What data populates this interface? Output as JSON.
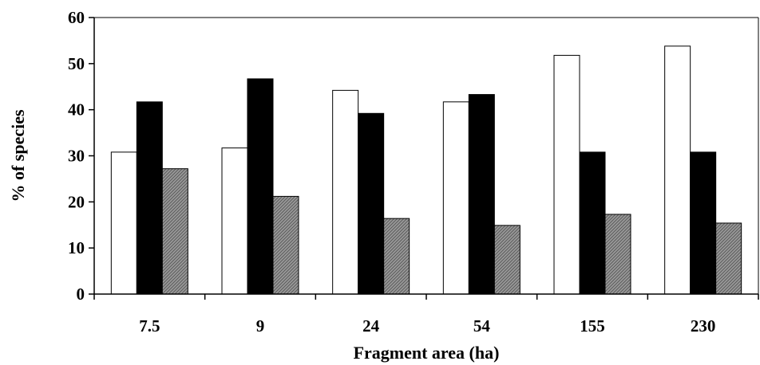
{
  "chart_data": {
    "type": "bar",
    "title": "",
    "xlabel": "Fragment area (ha)",
    "ylabel": "% of species",
    "categories": [
      "7.5",
      "9",
      "24",
      "54",
      "155",
      "230"
    ],
    "ylim": [
      0,
      60
    ],
    "yticks": [
      0,
      10,
      20,
      30,
      40,
      50,
      60
    ],
    "grid": false,
    "legend": "none",
    "series": [
      {
        "fill": "#ffffff",
        "pattern": "none",
        "values": [
          30.8,
          31.7,
          44.2,
          41.7,
          51.8,
          53.8
        ]
      },
      {
        "fill": "#000000",
        "pattern": "none",
        "values": [
          41.7,
          46.7,
          39.2,
          43.3,
          30.8,
          30.8
        ]
      },
      {
        "fill": "#9a9a9a",
        "pattern": "hatch",
        "values": [
          27.2,
          21.2,
          16.4,
          14.9,
          17.3,
          15.4
        ]
      }
    ]
  }
}
